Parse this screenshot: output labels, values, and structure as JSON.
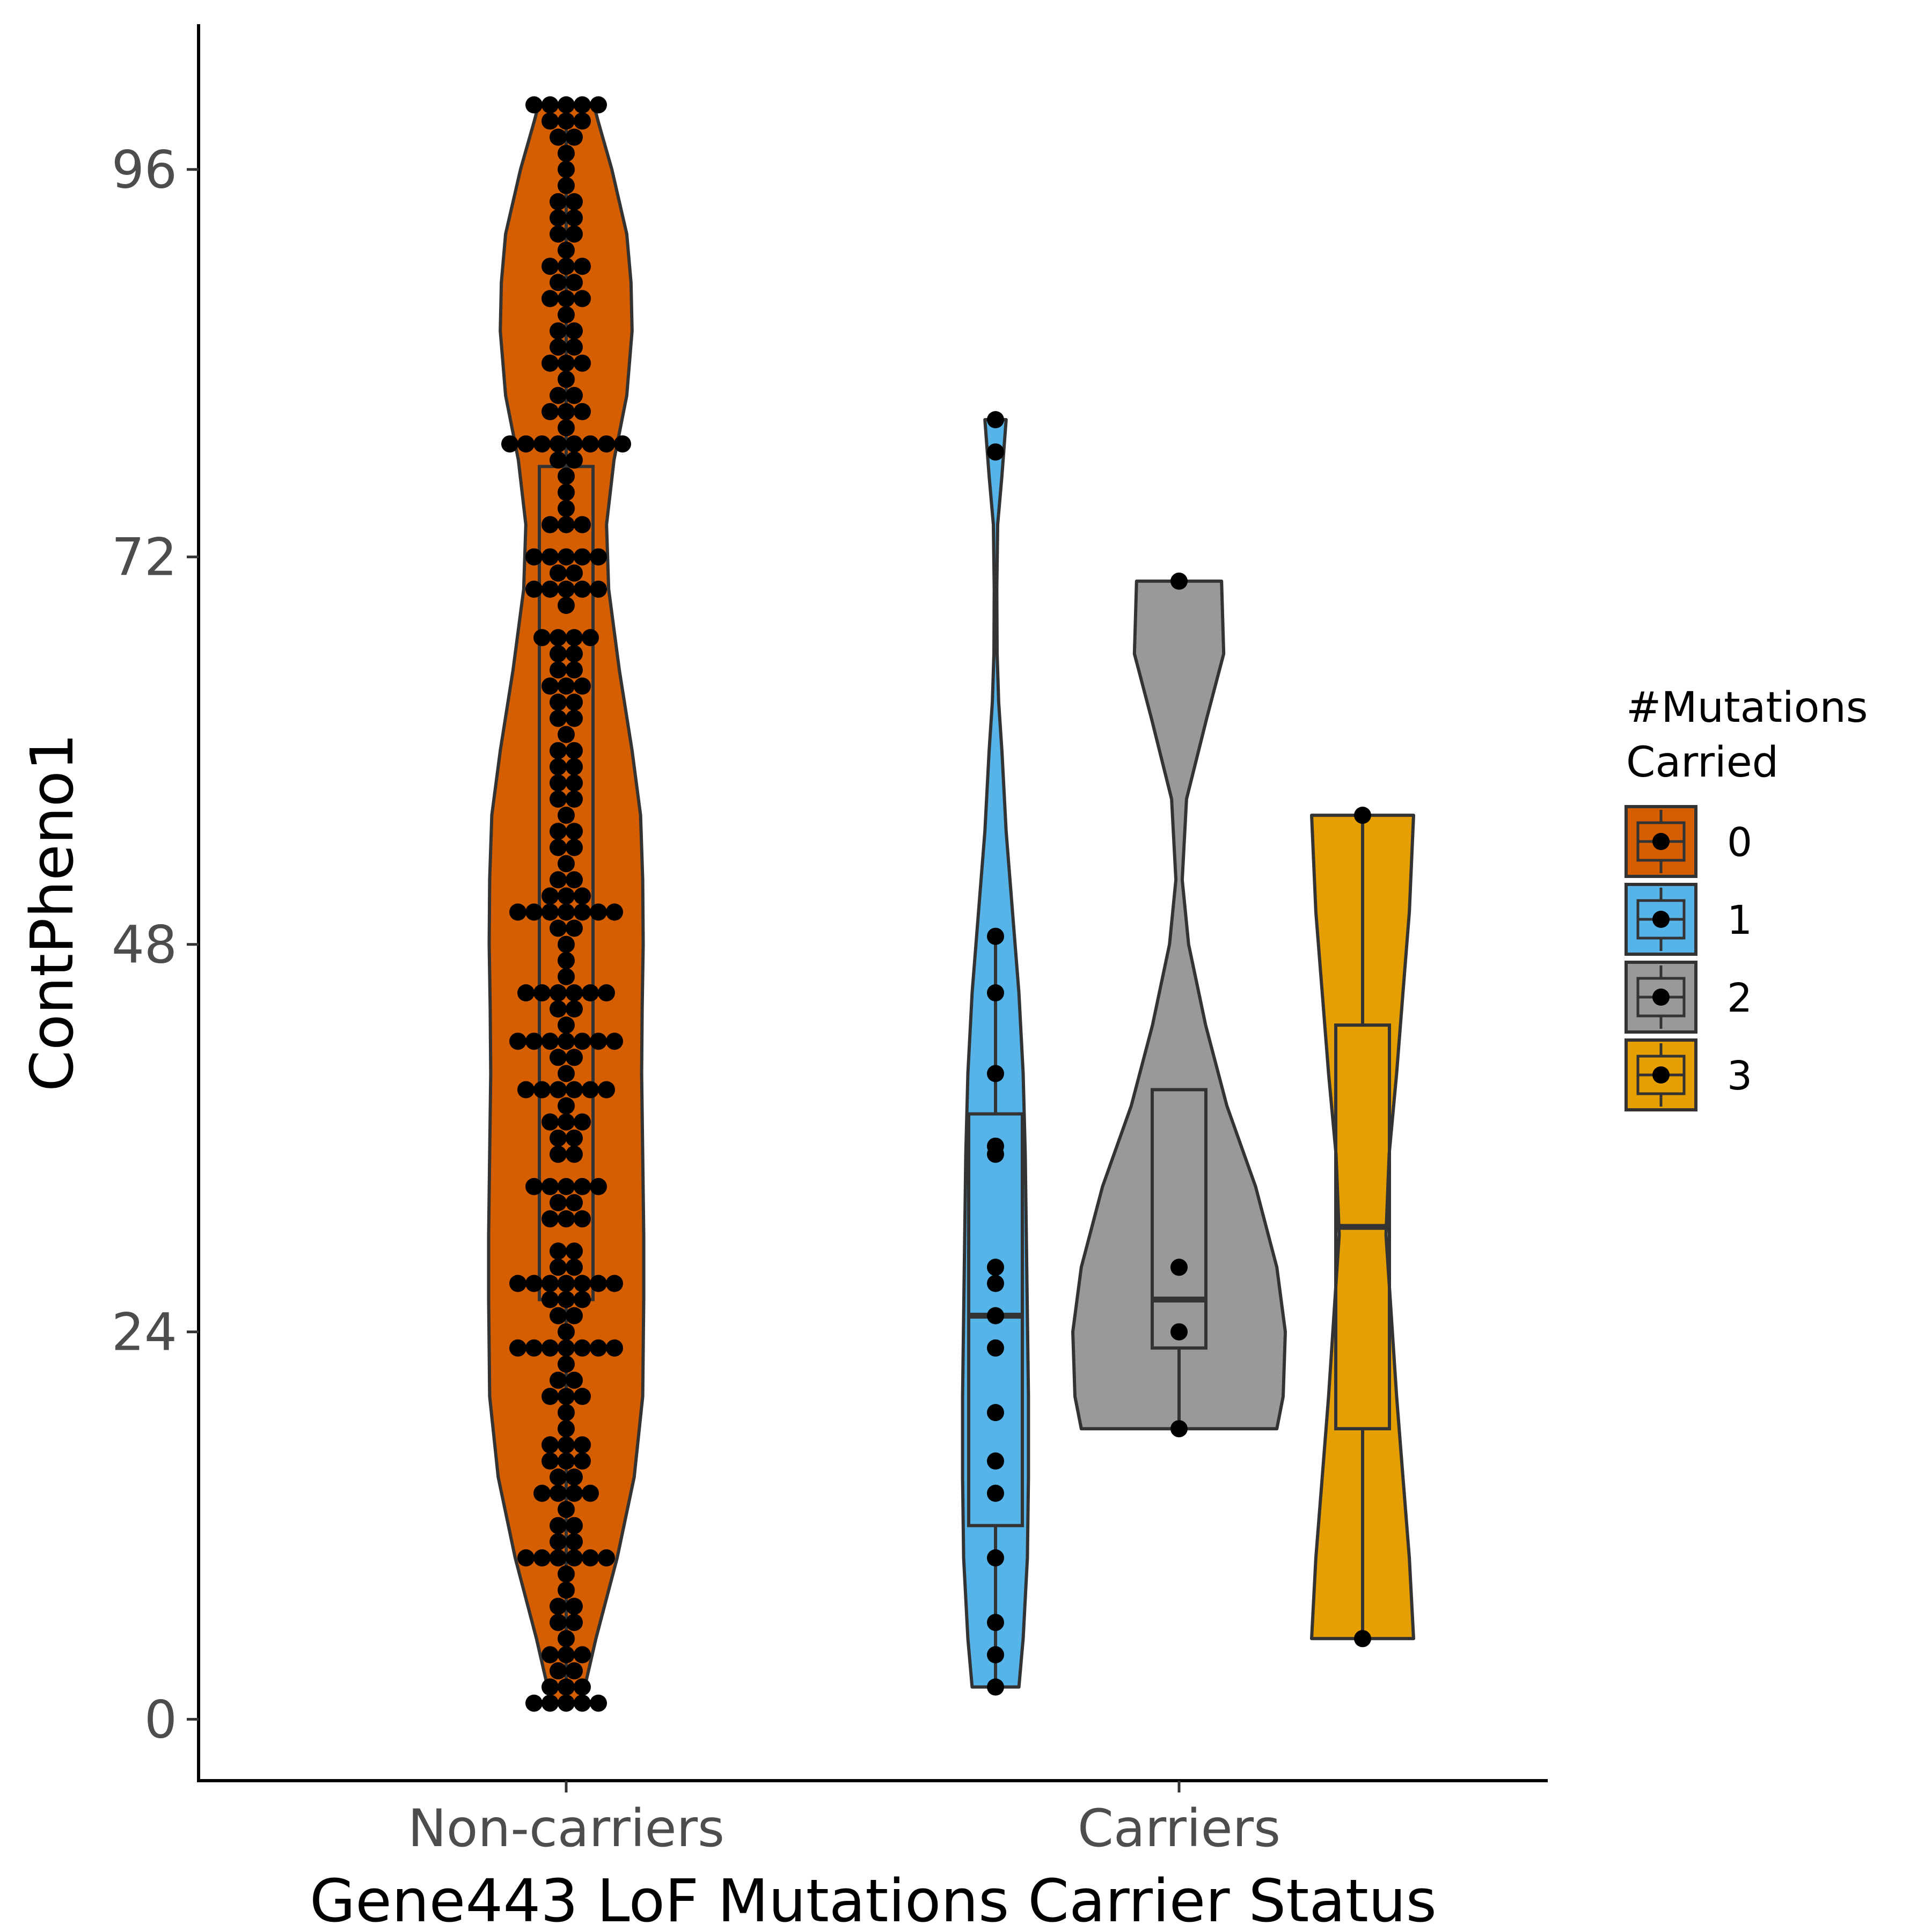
{
  "chart_data": {
    "type": "violin",
    "xlabel": "Gene443 LoF Mutations Carrier Status",
    "ylabel": "ContPheno1",
    "categories": [
      "Non-carriers",
      "Carriers"
    ],
    "yticks": [
      0,
      24,
      48,
      72,
      96
    ],
    "ylim": [
      -3.8,
      105
    ],
    "grid": false,
    "legend": {
      "title_lines": [
        "#Mutations",
        "Carried"
      ],
      "position": "right",
      "entries": [
        {
          "label": "0",
          "color": "#D55E00"
        },
        {
          "label": "1",
          "color": "#56B4E9"
        },
        {
          "label": "2",
          "color": "#999999"
        },
        {
          "label": "3",
          "color": "#E69F00"
        }
      ]
    },
    "groups": [
      {
        "mutations": "0",
        "category": "Non-carriers",
        "color": "#D55E00",
        "range": [
          1,
          100
        ],
        "box": {
          "q1": 26,
          "median": 50,
          "q3": 77.6,
          "whisker_low": 1,
          "whisker_high": 100
        },
        "density": [
          [
            1,
            0.14
          ],
          [
            5,
            0.28
          ],
          [
            10,
            0.48
          ],
          [
            15,
            0.64
          ],
          [
            20,
            0.72
          ],
          [
            26,
            0.73
          ],
          [
            30,
            0.73
          ],
          [
            35,
            0.72
          ],
          [
            40,
            0.71
          ],
          [
            44,
            0.715
          ],
          [
            48,
            0.725
          ],
          [
            52,
            0.72
          ],
          [
            56,
            0.7
          ],
          [
            60,
            0.62
          ],
          [
            65,
            0.5
          ],
          [
            70,
            0.4
          ],
          [
            74,
            0.38
          ],
          [
            78,
            0.45
          ],
          [
            82,
            0.57
          ],
          [
            86,
            0.62
          ],
          [
            89,
            0.61
          ],
          [
            92,
            0.57
          ],
          [
            96,
            0.43
          ],
          [
            99,
            0.3
          ],
          [
            100,
            0.26
          ]
        ],
        "points": [
          1,
          1,
          1,
          1,
          1,
          2,
          2,
          2,
          3,
          3,
          4,
          4,
          4,
          5,
          6,
          6,
          7,
          7,
          8,
          9,
          10,
          10,
          10,
          10,
          10,
          10,
          11,
          11,
          12,
          12,
          13,
          14,
          14,
          14,
          14,
          15,
          15,
          16,
          16,
          16,
          17,
          17,
          17,
          18,
          19,
          20,
          20,
          20,
          21,
          21,
          22,
          23,
          23,
          23,
          23,
          23,
          23,
          23,
          24,
          25,
          25,
          26,
          26,
          26,
          27,
          27,
          27,
          27,
          27,
          27,
          27,
          28,
          28,
          29,
          29,
          31,
          31,
          31,
          32,
          32,
          33,
          33,
          33,
          33,
          33,
          35,
          35,
          36,
          36,
          37,
          37,
          37,
          38,
          39,
          39,
          39,
          39,
          39,
          39,
          40,
          41,
          41,
          42,
          42,
          42,
          42,
          42,
          42,
          42,
          43,
          44,
          44,
          45,
          45,
          45,
          45,
          45,
          45,
          46,
          47,
          48,
          49,
          49,
          50,
          50,
          50,
          50,
          50,
          50,
          50,
          51,
          51,
          51,
          52,
          52,
          53,
          54,
          54,
          55,
          55,
          56,
          57,
          57,
          58,
          58,
          59,
          59,
          60,
          60,
          61,
          62,
          62,
          63,
          63,
          64,
          64,
          64,
          65,
          65,
          66,
          66,
          67,
          67,
          67,
          67,
          69,
          70,
          70,
          70,
          70,
          70,
          71,
          71,
          72,
          72,
          72,
          72,
          72,
          74,
          74,
          74,
          75,
          76,
          77,
          78,
          78,
          79,
          79,
          79,
          79,
          79,
          79,
          79,
          79,
          80,
          81,
          81,
          81,
          82,
          82,
          83,
          84,
          84,
          84,
          85,
          85,
          86,
          86,
          87,
          88,
          88,
          88,
          89,
          89,
          90,
          90,
          90,
          91,
          92,
          92,
          93,
          93,
          94,
          94,
          95,
          96,
          97,
          98,
          98,
          99,
          99,
          99,
          100,
          100,
          100,
          100,
          100
        ]
      },
      {
        "mutations": "1",
        "category": "Carriers",
        "color": "#56B4E9",
        "range": [
          2,
          80.5
        ],
        "box": {
          "q1": 12,
          "median": 25,
          "q3": 37.5,
          "whisker_low": 2,
          "whisker_high": 48.5
        },
        "density": [
          [
            2,
            0.22
          ],
          [
            5,
            0.26
          ],
          [
            10,
            0.3
          ],
          [
            15,
            0.31
          ],
          [
            20,
            0.31
          ],
          [
            25,
            0.3
          ],
          [
            30,
            0.29
          ],
          [
            35,
            0.28
          ],
          [
            40,
            0.26
          ],
          [
            45,
            0.22
          ],
          [
            50,
            0.16
          ],
          [
            55,
            0.1
          ],
          [
            60,
            0.06
          ],
          [
            63,
            0.03
          ],
          [
            66,
            0.015
          ],
          [
            70,
            0.012
          ],
          [
            74,
            0.02
          ],
          [
            77,
            0.06
          ],
          [
            80.5,
            0.1
          ]
        ],
        "points": [
          2,
          4,
          6,
          10,
          14,
          16,
          19,
          23,
          25,
          27,
          28,
          35,
          35.5,
          40,
          45,
          48.5,
          78.5,
          80.5
        ]
      },
      {
        "mutations": "2",
        "category": "Carriers",
        "color": "#999999",
        "range": [
          18,
          70.5
        ],
        "box": {
          "q1": 23,
          "median": 26,
          "q3": 39,
          "whisker_low": 18,
          "whisker_high": 39
        },
        "density": [
          [
            18,
            0.92
          ],
          [
            20,
            0.98
          ],
          [
            24,
            1.0
          ],
          [
            28,
            0.92
          ],
          [
            33,
            0.72
          ],
          [
            38,
            0.45
          ],
          [
            43,
            0.25
          ],
          [
            48,
            0.09
          ],
          [
            52,
            0.03
          ],
          [
            57,
            0.07
          ],
          [
            62,
            0.26
          ],
          [
            66,
            0.42
          ],
          [
            70.5,
            0.4
          ]
        ],
        "points": [
          18,
          24,
          28,
          70.5
        ]
      },
      {
        "mutations": "3",
        "category": "Carriers",
        "color": "#E69F00",
        "range": [
          5,
          56
        ],
        "box": {
          "q1": 18,
          "median": 30.5,
          "q3": 43,
          "whisker_low": 5,
          "whisker_high": 56
        },
        "density": [
          [
            5,
            0.48
          ],
          [
            10,
            0.44
          ],
          [
            15,
            0.38
          ],
          [
            20,
            0.32
          ],
          [
            25,
            0.27
          ],
          [
            30,
            0.22
          ],
          [
            35,
            0.25
          ],
          [
            40,
            0.32
          ],
          [
            45,
            0.38
          ],
          [
            50,
            0.44
          ],
          [
            56,
            0.48
          ]
        ],
        "points": [
          5,
          56
        ]
      }
    ]
  }
}
